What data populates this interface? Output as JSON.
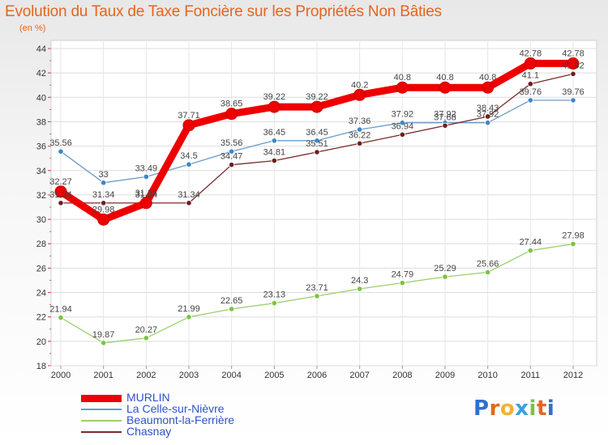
{
  "title": "Evolution du Taux de Taxe Foncière sur les Propriétés Non Bâties",
  "unit": "(en %)",
  "logo": "Proxiti",
  "colors": {
    "title": "#e8641e",
    "legend_text": "#2f52c8"
  },
  "chart_data": {
    "type": "line",
    "title": "Evolution du Taux de Taxe Foncière sur les Propriétés Non Bâties",
    "ylabel": "(en %)",
    "xlabel": "",
    "ylim": [
      18,
      44
    ],
    "yticks": [
      18,
      20,
      22,
      24,
      26,
      28,
      30,
      32,
      34,
      36,
      38,
      40,
      42,
      44
    ],
    "x": [
      "2000",
      "2001",
      "2002",
      "2003",
      "2004",
      "2005",
      "2006",
      "2007",
      "2008",
      "2009",
      "2010",
      "2011",
      "2012"
    ],
    "grid": "horizontal",
    "legend": "bottom-left",
    "series": [
      {
        "name": "MURLIN",
        "color": "#ee0000",
        "marker": "#ee0000",
        "values": [
          32.27,
          29.98,
          31.34,
          37.71,
          38.65,
          39.22,
          39.22,
          40.2,
          40.8,
          40.8,
          40.8,
          42.78,
          42.78
        ],
        "labels": [
          "32.27",
          "29.98",
          "31.34",
          "37.71",
          "38.65",
          "39.22",
          "39.22",
          "40.2",
          "40.8",
          "40.8",
          "40.8",
          "42.78",
          "42.78"
        ]
      },
      {
        "name": "La Celle-sur-Nièvre",
        "color": "#6a9bc9",
        "marker": "#3f86c8",
        "values": [
          35.56,
          33,
          33.49,
          34.5,
          35.56,
          36.45,
          36.45,
          37.36,
          37.92,
          37.92,
          37.92,
          39.76,
          39.76
        ],
        "labels": [
          "35.56",
          "33",
          "33.49",
          "34.5",
          "35.56",
          "36.45",
          "36.45",
          "37.36",
          "37.92",
          "37.92",
          "37.92",
          "39.76",
          "39.76"
        ]
      },
      {
        "name": "Beaumont-la-Ferrière",
        "color": "#9ad06a",
        "marker": "#7cc242",
        "values": [
          21.94,
          19.87,
          20.27,
          21.99,
          22.65,
          23.13,
          23.71,
          24.3,
          24.79,
          25.29,
          25.66,
          27.44,
          27.98
        ],
        "labels": [
          "21.94",
          "19.87",
          "20.27",
          "21.99",
          "22.65",
          "23.13",
          "23.71",
          "24.3",
          "24.79",
          "25.29",
          "25.66",
          "27.44",
          "27.98"
        ]
      },
      {
        "name": "Chasnay",
        "color": "#7a2a2a",
        "marker": "#6a1f1f",
        "values": [
          31.34,
          31.34,
          31.34,
          31.34,
          34.47,
          34.81,
          35.51,
          36.22,
          36.94,
          37.68,
          38.43,
          41.1,
          41.92
        ],
        "labels": [
          "31.34",
          "31.34",
          "31.34",
          "31.34",
          "34.47",
          "34.81",
          "35.51",
          "36.22",
          "36.94",
          "37.68",
          "38.43",
          "41.1",
          "41.92"
        ]
      }
    ]
  }
}
